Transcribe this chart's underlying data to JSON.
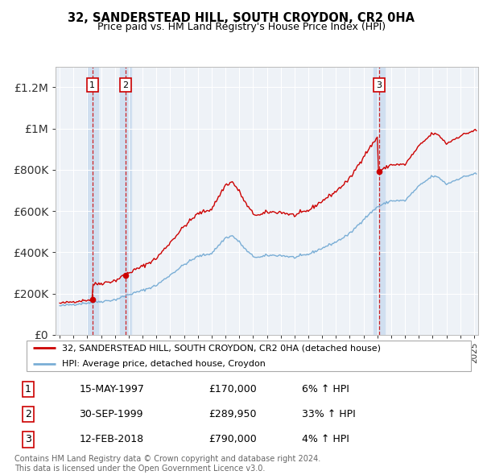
{
  "title": "32, SANDERSTEAD HILL, SOUTH CROYDON, CR2 0HA",
  "subtitle": "Price paid vs. HM Land Registry's House Price Index (HPI)",
  "legend_line1": "32, SANDERSTEAD HILL, SOUTH CROYDON, CR2 0HA (detached house)",
  "legend_line2": "HPI: Average price, detached house, Croydon",
  "sale_color": "#cc0000",
  "hpi_color": "#7aaed6",
  "transactions": [
    {
      "label": "1",
      "date_num": 1997.37,
      "price": 170000
    },
    {
      "label": "2",
      "date_num": 1999.75,
      "price": 289950
    },
    {
      "label": "3",
      "date_num": 2018.12,
      "price": 790000
    }
  ],
  "transaction_notes": [
    "6% ↑ HPI",
    "33% ↑ HPI",
    "4% ↑ HPI"
  ],
  "table_dates": [
    "15-MAY-1997",
    "30-SEP-1999",
    "12-FEB-2018"
  ],
  "table_prices": [
    "£170,000",
    "£289,950",
    "£790,000"
  ],
  "ylim": [
    0,
    1300000
  ],
  "xlim_start": 1994.7,
  "xlim_end": 2025.3,
  "footer": "Contains HM Land Registry data © Crown copyright and database right 2024.\nThis data is licensed under the Open Government Licence v3.0.",
  "chart_bg": "#eef2f7",
  "span_color": "#d0dff0"
}
